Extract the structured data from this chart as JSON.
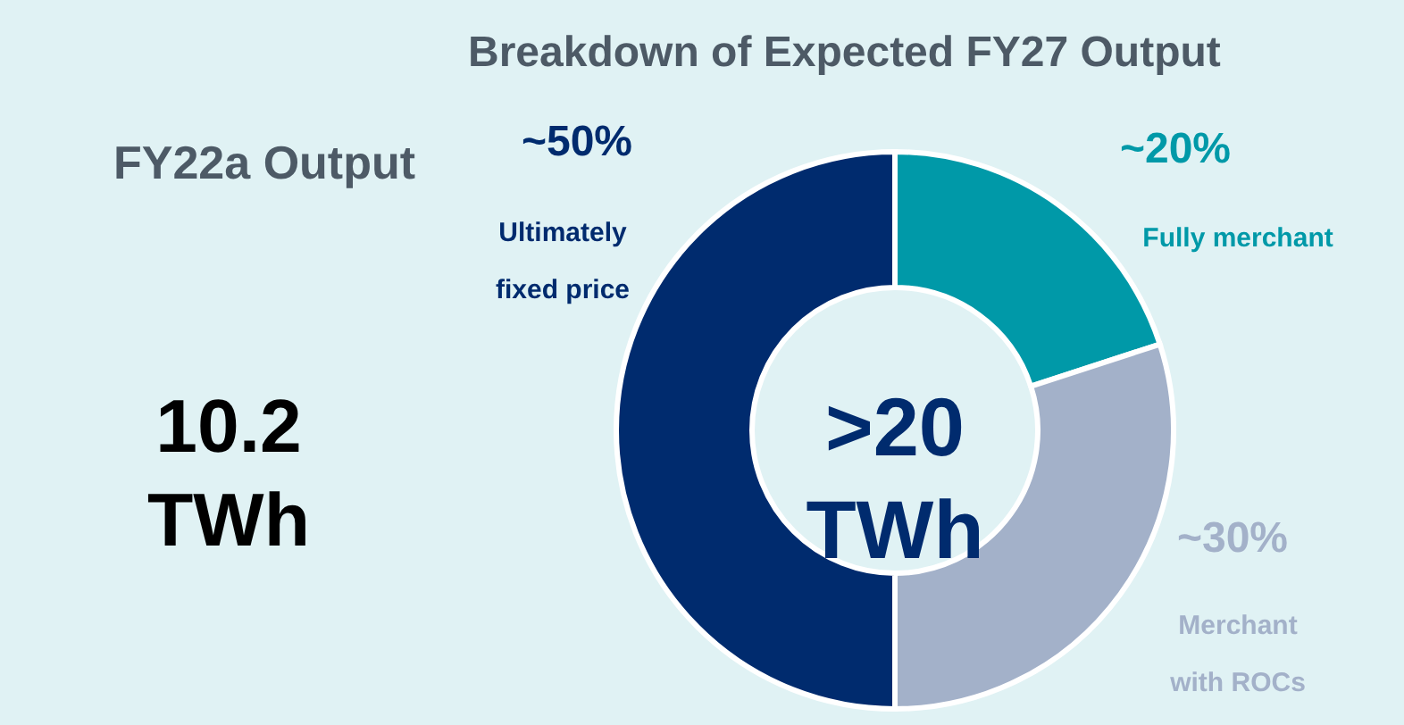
{
  "chart_data": {
    "type": "donut",
    "title": "Breakdown of Expected FY27 Output",
    "categories": [
      "Fully merchant",
      "Merchant with ROCs",
      "Ultimately fixed price"
    ],
    "values": [
      20,
      30,
      50
    ],
    "colors": [
      "#0099a8",
      "#a3b1c9",
      "#002b6e"
    ],
    "value_labels": [
      "~20%",
      "~30%",
      "~50%"
    ],
    "annotations": [
      "FY22a Output",
      "10.2 TWh",
      ">20 TWh"
    ]
  }
}
